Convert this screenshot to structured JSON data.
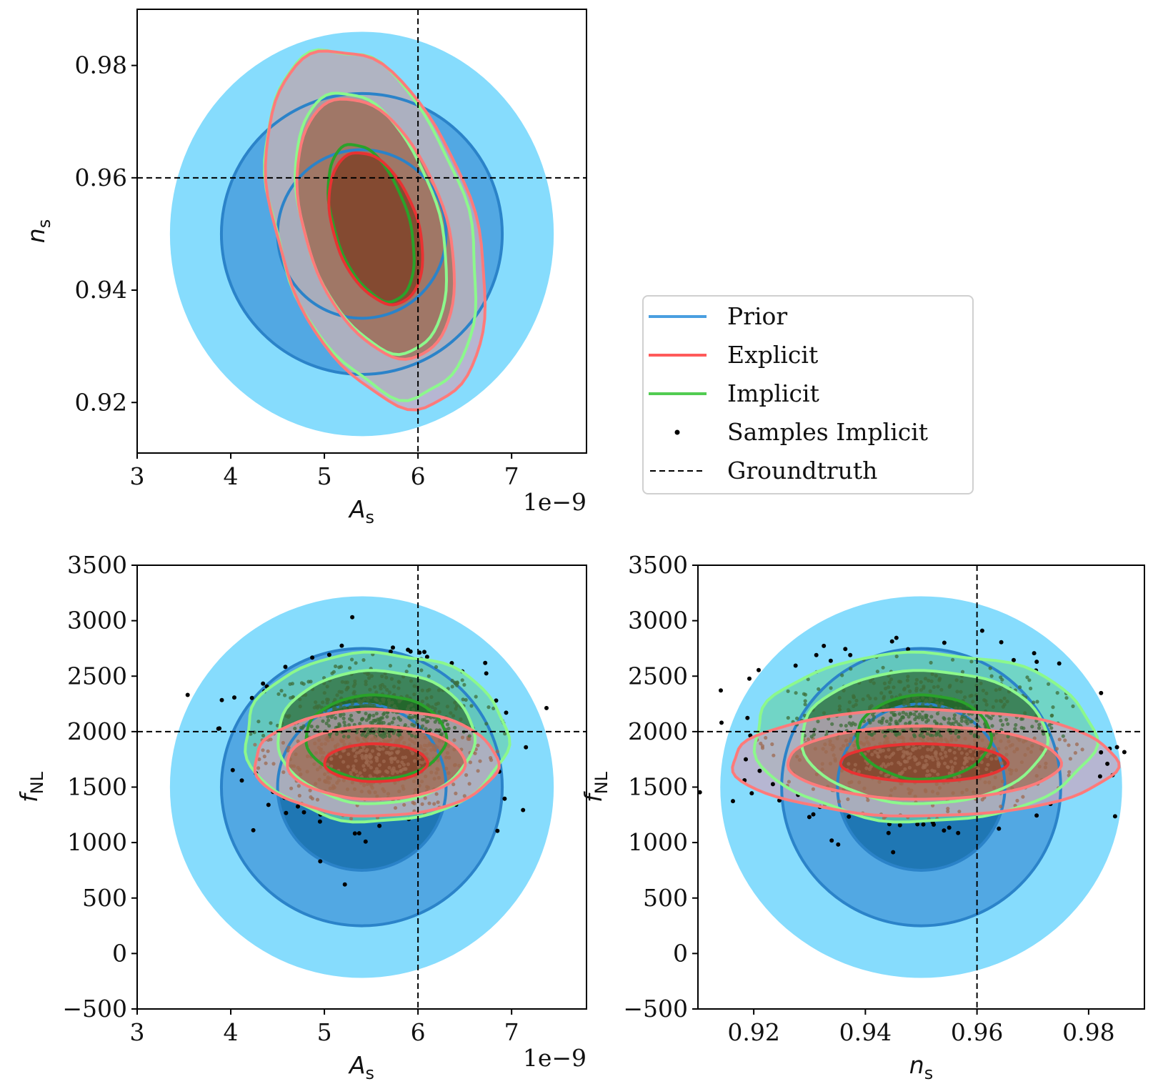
{
  "chart_data": [
    {
      "id": "panel-As-ns",
      "type": "contour",
      "xlabel": "A_s",
      "ylabel": "n_s",
      "x_offset_label": "1e−9",
      "xlim": [
        3,
        7.8
      ],
      "ylim": [
        0.911,
        0.99
      ],
      "xticks": [
        3,
        4,
        5,
        6,
        7
      ],
      "xtick_labels": [
        "3",
        "4",
        "5",
        "6",
        "7"
      ],
      "yticks": [
        0.92,
        0.94,
        0.96,
        0.98
      ],
      "ytick_labels": [
        "0.92",
        "0.94",
        "0.96",
        "0.98"
      ],
      "groundtruth": {
        "x": 6,
        "y": 0.96
      },
      "prior": {
        "center": [
          5.4,
          0.95
        ],
        "radii_x": [
          0.9,
          1.5,
          2.05
        ],
        "radii_y": [
          0.015,
          0.025,
          0.036
        ]
      },
      "explicit": {
        "center": [
          5.55,
          0.951
        ],
        "radii": [
          [
            0.45,
            0.014
          ],
          [
            0.75,
            0.024
          ],
          [
            1.05,
            0.033
          ]
        ],
        "tilt_deg": -18
      },
      "implicit": {
        "center": [
          5.5,
          0.952
        ],
        "radii": [
          [
            0.4,
            0.0145
          ],
          [
            0.72,
            0.024
          ],
          [
            1.02,
            0.032
          ]
        ],
        "tilt_deg": -17
      },
      "samples": false
    },
    {
      "id": "panel-As-fNL",
      "type": "contour",
      "xlabel": "A_s",
      "ylabel": "f_NL",
      "x_offset_label": "1e−9",
      "xlim": [
        3,
        7.8
      ],
      "ylim": [
        -500,
        3500
      ],
      "xticks": [
        3,
        4,
        5,
        6,
        7
      ],
      "xtick_labels": [
        "3",
        "4",
        "5",
        "6",
        "7"
      ],
      "yticks": [
        -500,
        0,
        500,
        1000,
        1500,
        2000,
        2500,
        3000,
        3500
      ],
      "ytick_labels": [
        "−500",
        "0",
        "500",
        "1000",
        "1500",
        "2000",
        "2500",
        "3000",
        "3500"
      ],
      "groundtruth": {
        "x": 6,
        "y": 2000
      },
      "prior": {
        "center": [
          5.4,
          1500
        ],
        "radii_x": [
          0.9,
          1.5,
          2.05
        ],
        "radii_y": [
          750,
          1250,
          1720
        ]
      },
      "explicit": {
        "center": [
          5.55,
          1720
        ],
        "radii": [
          [
            0.55,
            170
          ],
          [
            0.95,
            330
          ],
          [
            1.3,
            480
          ]
        ],
        "tilt_deg": 0
      },
      "implicit": {
        "center": [
          5.55,
          1950
        ],
        "radii": [
          [
            0.75,
            380
          ],
          [
            1.05,
            600
          ],
          [
            1.4,
            760
          ]
        ],
        "tilt_deg": 0
      },
      "samples": true
    },
    {
      "id": "panel-ns-fNL",
      "type": "contour",
      "xlabel": "n_s",
      "ylabel": "f_NL",
      "xlim": [
        0.91,
        0.99
      ],
      "ylim": [
        -500,
        3500
      ],
      "xticks": [
        0.92,
        0.94,
        0.96,
        0.98
      ],
      "xtick_labels": [
        "0.92",
        "0.94",
        "0.96",
        "0.98"
      ],
      "yticks": [
        -500,
        0,
        500,
        1000,
        1500,
        2000,
        2500,
        3000,
        3500
      ],
      "ytick_labels": [
        "−500",
        "0",
        "500",
        "1000",
        "1500",
        "2000",
        "2500",
        "3000",
        "3500"
      ],
      "groundtruth": {
        "x": 0.96,
        "y": 2000
      },
      "prior": {
        "center": [
          0.95,
          1500
        ],
        "radii_x": [
          0.015,
          0.025,
          0.036
        ],
        "radii_y": [
          750,
          1250,
          1720
        ]
      },
      "explicit": {
        "center": [
          0.9505,
          1720
        ],
        "radii": [
          [
            0.015,
            170
          ],
          [
            0.0245,
            330
          ],
          [
            0.0345,
            480
          ]
        ],
        "tilt_deg": 0
      },
      "implicit": {
        "center": [
          0.9505,
          1950
        ],
        "radii": [
          [
            0.012,
            380
          ],
          [
            0.022,
            600
          ],
          [
            0.0305,
            760
          ]
        ],
        "tilt_deg": 0
      },
      "samples": true
    }
  ],
  "legend": {
    "items": [
      {
        "label": "Prior",
        "style": "line",
        "color": "#4a9fe0"
      },
      {
        "label": "Explicit",
        "style": "line",
        "color": "#ff5a5a"
      },
      {
        "label": "Implicit",
        "style": "line",
        "color": "#52cc52"
      },
      {
        "label": "Samples Implicit",
        "style": "dot",
        "color": "#000000"
      },
      {
        "label": "Groundtruth",
        "style": "dashed",
        "color": "#000000"
      }
    ]
  },
  "colors": {
    "prior_fill": [
      "#1f77b4",
      "#52a8e3",
      "#86dcfd"
    ],
    "prior_line": "#2b83c9",
    "explicit_fill": [
      "#7a3a1e",
      "#a0684f",
      "#c9a8c0"
    ],
    "explicit_line_inner": "#e83232",
    "explicit_line_outer": "#ff7a7a",
    "implicit_fill": [
      "#1a5c1a",
      "#2f6b34",
      "#6ad3b0"
    ],
    "implicit_line_inner": "#2aa22a",
    "implicit_line_outer": "#8cf88c",
    "groundtruth": "#000000"
  }
}
